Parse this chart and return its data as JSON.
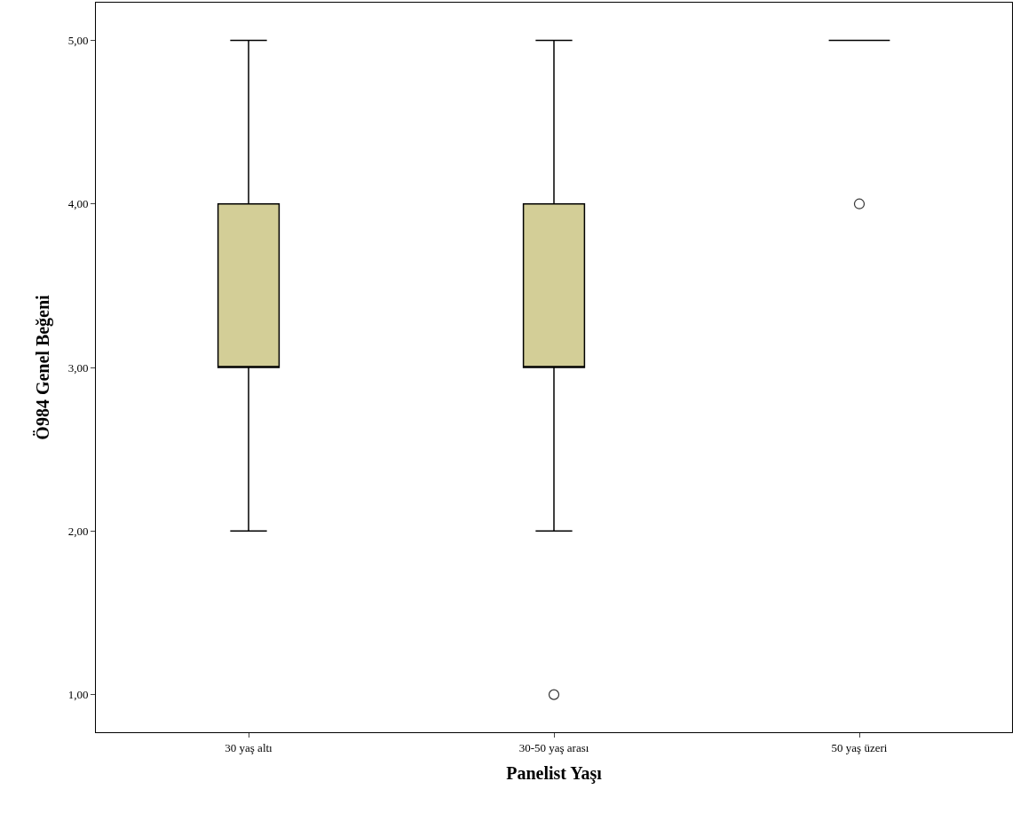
{
  "chart_data": {
    "type": "box",
    "xlabel": "Panelist Yaşı",
    "ylabel": "Ö984 Genel Beğeni",
    "categories": [
      "30 yaş altı",
      "30-50 yaş arası",
      "50 yaş üzeri"
    ],
    "colors": [
      "#d3ce97",
      "#d3ce97",
      "#000000"
    ],
    "boxes": [
      {
        "low": 2,
        "q1": 3,
        "median": 3,
        "q3": 4,
        "high": 5
      },
      {
        "low": 2,
        "q1": 3,
        "median": 3,
        "q3": 4,
        "high": 5,
        "outliers": [
          1
        ]
      },
      {
        "low": 5,
        "q1": 5,
        "median": 5,
        "q3": 5,
        "high": 5,
        "outliers": [
          4
        ]
      }
    ],
    "ylim": [
      0.77,
      5.23
    ],
    "yticks": [
      {
        "value": 1,
        "label": "1,00"
      },
      {
        "value": 2,
        "label": "2,00"
      },
      {
        "value": 3,
        "label": "3,00"
      },
      {
        "value": 4,
        "label": "4,00"
      },
      {
        "value": 5,
        "label": "5,00"
      }
    ]
  }
}
